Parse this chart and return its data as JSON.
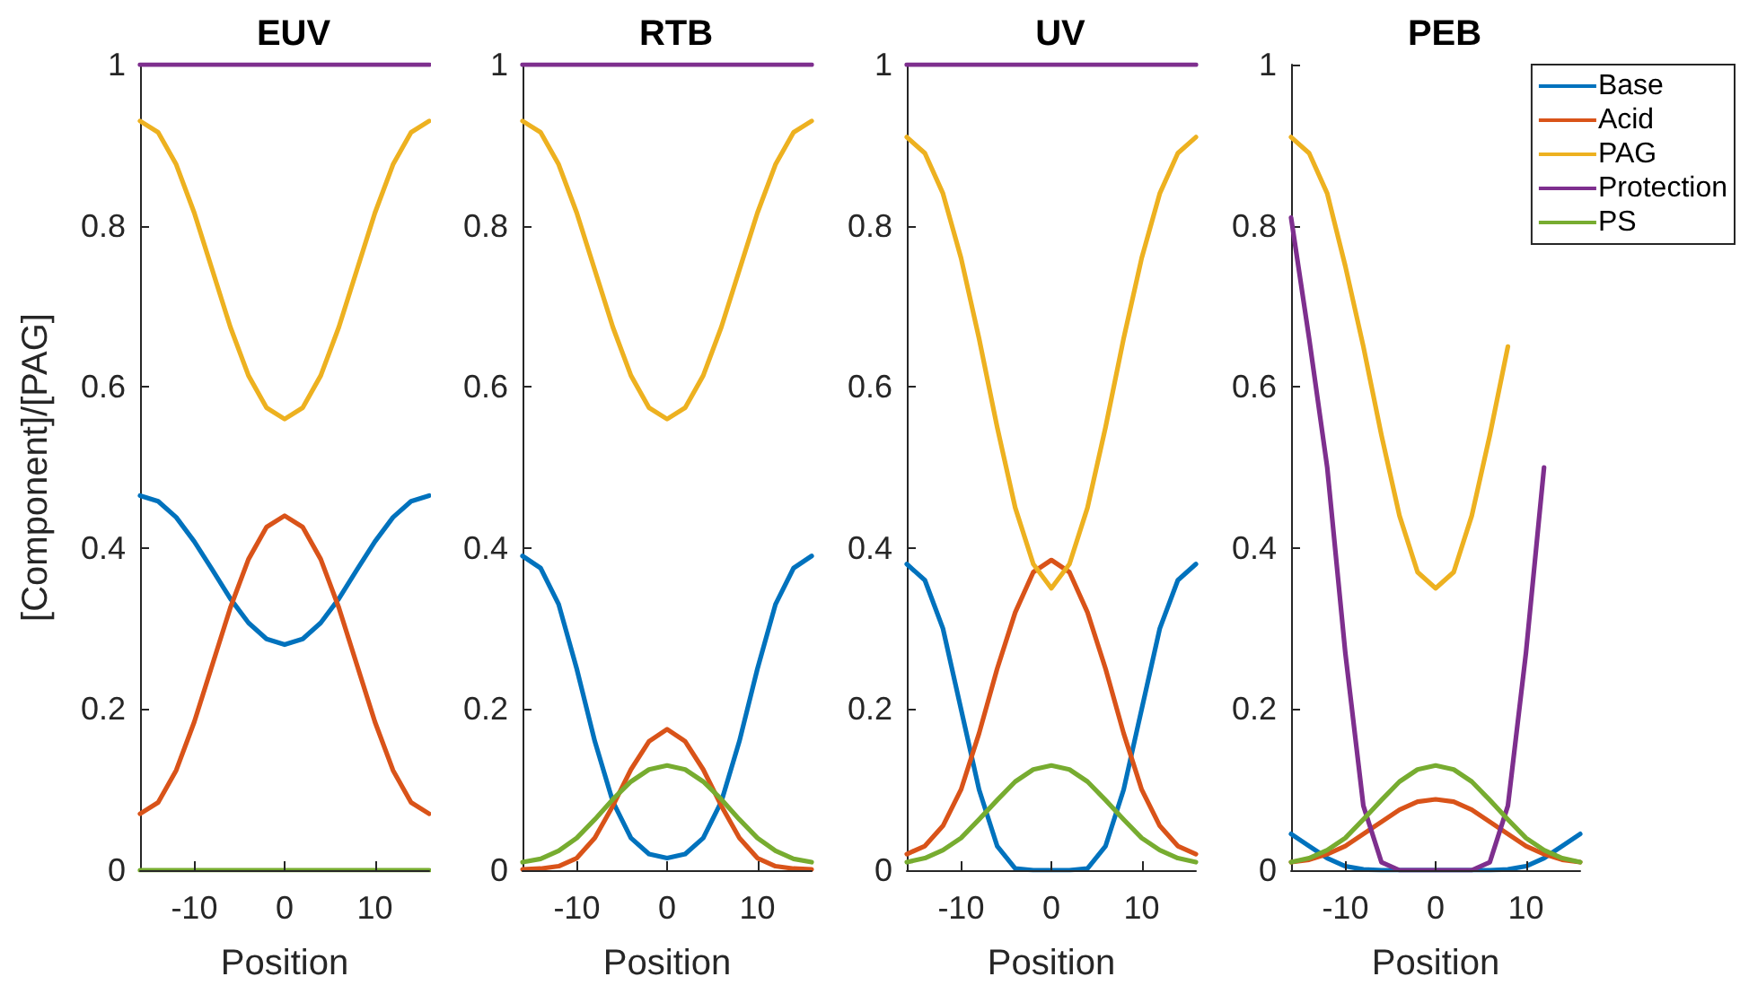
{
  "chart_data": [
    {
      "type": "line",
      "title": "EUV",
      "xlabel": "Position",
      "ylabel": "[Component]/[PAG]",
      "x": [
        -16,
        -14,
        -12,
        -10,
        -8,
        -6,
        -4,
        -2,
        0,
        2,
        4,
        6,
        8,
        10,
        12,
        14,
        16
      ],
      "xlim": [
        -16,
        16
      ],
      "xticks": [
        -10,
        0,
        10
      ],
      "ylim": [
        0,
        1
      ],
      "yticks": [
        0,
        0.2,
        0.4,
        0.6,
        0.8,
        1
      ],
      "marker": "none",
      "line_style": "solid",
      "grid": false,
      "legend": false,
      "series": [
        {
          "color": "#0072bd",
          "values": [
            0.465,
            0.458,
            0.438,
            0.408,
            0.373,
            0.337,
            0.307,
            0.287,
            0.28,
            0.287,
            0.307,
            0.337,
            0.373,
            0.408,
            0.438,
            0.458,
            0.465
          ]
        },
        {
          "color": "#d95319",
          "values": [
            0.07,
            0.084,
            0.124,
            0.184,
            0.255,
            0.326,
            0.386,
            0.426,
            0.44,
            0.426,
            0.386,
            0.326,
            0.255,
            0.184,
            0.124,
            0.084,
            0.07
          ]
        },
        {
          "color": "#edb120",
          "values": [
            0.93,
            0.916,
            0.876,
            0.816,
            0.745,
            0.674,
            0.614,
            0.574,
            0.56,
            0.574,
            0.614,
            0.674,
            0.745,
            0.816,
            0.876,
            0.916,
            0.93
          ]
        },
        {
          "color": "#7e2f8e",
          "values": [
            1,
            1,
            1,
            1,
            1,
            1,
            1,
            1,
            1,
            1,
            1,
            1,
            1,
            1,
            1,
            1,
            1
          ]
        },
        {
          "color": "#77ac30",
          "values": [
            0,
            0,
            0,
            0,
            0,
            0,
            0,
            0,
            0,
            0,
            0,
            0,
            0,
            0,
            0,
            0,
            0
          ]
        }
      ]
    },
    {
      "type": "line",
      "title": "RTB",
      "xlabel": "Position",
      "x": [
        -16,
        -14,
        -12,
        -10,
        -8,
        -6,
        -4,
        -2,
        0,
        2,
        4,
        6,
        8,
        10,
        12,
        14,
        16
      ],
      "xlim": [
        -16,
        16
      ],
      "xticks": [
        -10,
        0,
        10
      ],
      "ylim": [
        0,
        1
      ],
      "yticks": [
        0,
        0.2,
        0.4,
        0.6,
        0.8,
        1
      ],
      "marker": "none",
      "line_style": "solid",
      "grid": false,
      "legend": false,
      "series": [
        {
          "color": "#0072bd",
          "values": [
            0.39,
            0.375,
            0.33,
            0.25,
            0.16,
            0.085,
            0.04,
            0.02,
            0.015,
            0.02,
            0.04,
            0.085,
            0.16,
            0.25,
            0.33,
            0.375,
            0.39
          ]
        },
        {
          "color": "#d95319",
          "values": [
            0.001,
            0.002,
            0.005,
            0.015,
            0.04,
            0.08,
            0.125,
            0.16,
            0.175,
            0.16,
            0.125,
            0.08,
            0.04,
            0.015,
            0.005,
            0.002,
            0.001
          ]
        },
        {
          "color": "#edb120",
          "values": [
            0.93,
            0.916,
            0.876,
            0.816,
            0.745,
            0.674,
            0.614,
            0.574,
            0.56,
            0.574,
            0.614,
            0.674,
            0.745,
            0.816,
            0.876,
            0.916,
            0.93
          ]
        },
        {
          "color": "#7e2f8e",
          "values": [
            1,
            1,
            1,
            1,
            1,
            1,
            1,
            1,
            1,
            1,
            1,
            1,
            1,
            1,
            1,
            1,
            1
          ]
        },
        {
          "color": "#77ac30",
          "values": [
            0.01,
            0.014,
            0.024,
            0.04,
            0.063,
            0.088,
            0.11,
            0.125,
            0.13,
            0.125,
            0.11,
            0.088,
            0.063,
            0.04,
            0.024,
            0.014,
            0.01
          ]
        }
      ]
    },
    {
      "type": "line",
      "title": "UV",
      "xlabel": "Position",
      "x": [
        -16,
        -14,
        -12,
        -10,
        -8,
        -6,
        -4,
        -2,
        0,
        2,
        4,
        6,
        8,
        10,
        12,
        14,
        16
      ],
      "xlim": [
        -16,
        16
      ],
      "xticks": [
        -10,
        0,
        10
      ],
      "ylim": [
        0,
        1
      ],
      "yticks": [
        0,
        0.2,
        0.4,
        0.6,
        0.8,
        1
      ],
      "marker": "none",
      "line_style": "solid",
      "grid": false,
      "legend": false,
      "series": [
        {
          "color": "#0072bd",
          "values": [
            0.38,
            0.36,
            0.3,
            0.2,
            0.1,
            0.03,
            0.002,
            0,
            0,
            0,
            0.002,
            0.03,
            0.1,
            0.2,
            0.3,
            0.36,
            0.38
          ]
        },
        {
          "color": "#d95319",
          "values": [
            0.02,
            0.03,
            0.055,
            0.1,
            0.17,
            0.25,
            0.32,
            0.37,
            0.385,
            0.37,
            0.32,
            0.25,
            0.17,
            0.1,
            0.055,
            0.03,
            0.02
          ]
        },
        {
          "color": "#edb120",
          "values": [
            0.91,
            0.89,
            0.84,
            0.76,
            0.66,
            0.55,
            0.45,
            0.38,
            0.35,
            0.38,
            0.45,
            0.55,
            0.66,
            0.76,
            0.84,
            0.89,
            0.91
          ]
        },
        {
          "color": "#7e2f8e",
          "values": [
            1,
            1,
            1,
            1,
            1,
            1,
            1,
            1,
            1,
            1,
            1,
            1,
            1,
            1,
            1,
            1,
            1
          ]
        },
        {
          "color": "#77ac30",
          "values": [
            0.01,
            0.015,
            0.025,
            0.04,
            0.063,
            0.087,
            0.11,
            0.125,
            0.13,
            0.125,
            0.11,
            0.087,
            0.063,
            0.04,
            0.025,
            0.015,
            0.01
          ]
        }
      ]
    },
    {
      "type": "line",
      "title": "PEB",
      "xlabel": "Position",
      "x": [
        -16,
        -14,
        -12,
        -10,
        -8,
        -6,
        -4,
        -2,
        0,
        2,
        4,
        6,
        8,
        10,
        12,
        14,
        16
      ],
      "xlim": [
        -16,
        16
      ],
      "xticks": [
        -10,
        0,
        10
      ],
      "ylim": [
        0,
        1
      ],
      "yticks": [
        0,
        0.2,
        0.4,
        0.6,
        0.8,
        1
      ],
      "marker": "none",
      "line_style": "solid",
      "grid": false,
      "legend": "top right",
      "series": [
        {
          "name": "Base",
          "color": "#0072bd",
          "values": [
            0.045,
            0.03,
            0.015,
            0.005,
            0.001,
            0,
            0,
            0,
            0,
            0,
            0,
            0,
            0.001,
            0.005,
            0.015,
            0.03,
            0.045
          ]
        },
        {
          "name": "Acid",
          "color": "#d95319",
          "values": [
            0.01,
            0.013,
            0.02,
            0.03,
            0.045,
            0.06,
            0.075,
            0.085,
            0.088,
            0.085,
            0.075,
            0.06,
            0.045,
            0.03,
            0.02,
            0.013,
            0.01
          ]
        },
        {
          "name": "PAG",
          "color": "#edb120",
          "values": [
            0.91,
            0.89,
            0.84,
            0.75,
            0.65,
            0.54,
            0.44,
            0.37,
            0.35,
            0.37,
            0.44,
            0.54,
            0.65,
            null,
            null,
            null,
            null
          ]
        },
        {
          "name": "Protection",
          "color": "#7e2f8e",
          "values": [
            0.81,
            0.66,
            0.5,
            0.27,
            0.08,
            0.01,
            0,
            0,
            0,
            0,
            0,
            0.01,
            0.08,
            0.27,
            0.5,
            null,
            null
          ]
        },
        {
          "name": "PS",
          "color": "#77ac30",
          "values": [
            0.01,
            0.015,
            0.025,
            0.04,
            0.063,
            0.087,
            0.11,
            0.125,
            0.13,
            0.125,
            0.11,
            0.087,
            0.063,
            0.04,
            0.025,
            0.015,
            0.01
          ]
        }
      ]
    }
  ]
}
